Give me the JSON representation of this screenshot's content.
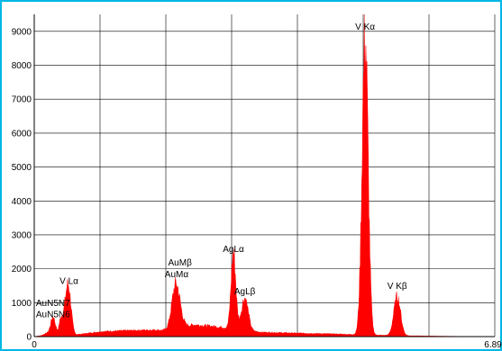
{
  "chart_data": {
    "type": "area",
    "title": "",
    "xlabel": "",
    "ylabel": "",
    "xlim": [
      0,
      6.89
    ],
    "ylim": [
      0,
      9500
    ],
    "x_tick_labels": [
      "0",
      "6.89"
    ],
    "y_ticks": [
      0,
      1000,
      2000,
      3000,
      4000,
      5000,
      6000,
      7000,
      8000,
      9000
    ],
    "grid": true,
    "fill_color": "#ff0000",
    "background_color": "#ffffff",
    "frame_color": "#00b7e6",
    "spectrum": {
      "x": [
        0.0,
        0.1,
        0.2,
        0.28,
        0.35,
        0.4,
        0.46,
        0.52,
        0.6,
        0.8,
        1.0,
        1.4,
        1.8,
        2.0,
        2.2,
        2.4,
        2.8,
        3.0,
        3.2,
        3.4,
        4.0,
        4.5,
        4.8,
        5.0,
        5.2,
        5.4,
        5.6,
        6.0,
        6.4,
        6.89
      ],
      "y": [
        0,
        30,
        120,
        250,
        150,
        600,
        400,
        80,
        50,
        100,
        150,
        180,
        200,
        180,
        300,
        350,
        280,
        220,
        180,
        130,
        100,
        80,
        60,
        50,
        40,
        30,
        25,
        15,
        5,
        0
      ]
    },
    "peaks": [
      {
        "label": "AuN5N6",
        "energy": 0.28,
        "counts": 350,
        "width": 0.03
      },
      {
        "label": "V Lα",
        "energy": 0.51,
        "counts": 1400,
        "width": 0.04
      },
      {
        "label": "AuMα",
        "energy": 2.12,
        "counts": 1300,
        "width": 0.06
      },
      {
        "label": "AgLα",
        "energy": 2.98,
        "counts": 2250,
        "width": 0.035
      },
      {
        "label": "AgLβ",
        "energy": 3.15,
        "counts": 950,
        "width": 0.05
      },
      {
        "label": "V Kα",
        "energy": 4.95,
        "counts": 8750,
        "width": 0.045
      },
      {
        "label": "V Kβ",
        "energy": 5.43,
        "counts": 1150,
        "width": 0.05
      }
    ],
    "annotations": [
      {
        "text": "V Kα",
        "x": 4.95,
        "y": 9050
      },
      {
        "text": "AgLα",
        "x": 2.98,
        "y": 2500
      },
      {
        "text": "AuMβ",
        "x": 2.18,
        "y": 2100
      },
      {
        "text": "AuMα",
        "x": 2.13,
        "y": 1750
      },
      {
        "text": "AgLβ",
        "x": 3.15,
        "y": 1250
      },
      {
        "text": "V Lα",
        "x": 0.52,
        "y": 1550
      },
      {
        "text": "AuN5N7",
        "x": 0.28,
        "y": 900
      },
      {
        "text": "AuN5N6",
        "x": 0.28,
        "y": 570
      },
      {
        "text": "V Kβ",
        "x": 5.43,
        "y": 1400
      }
    ]
  }
}
